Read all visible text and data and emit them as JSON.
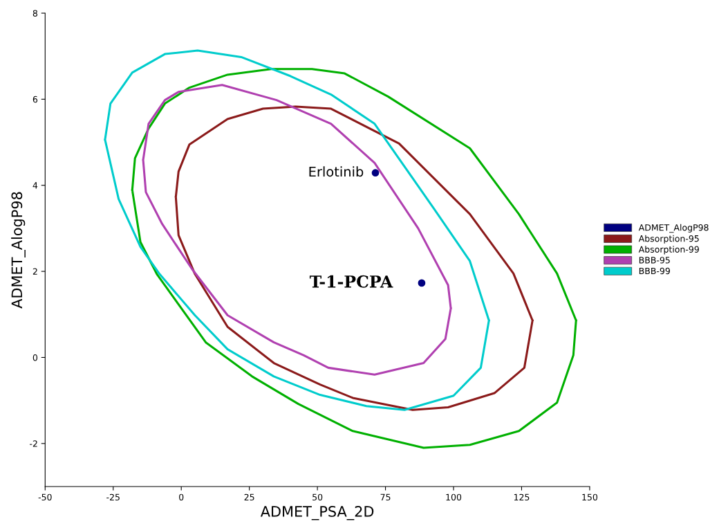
{
  "chart_data": {
    "type": "line",
    "xlabel": "ADMET_PSA_2D",
    "ylabel": "ADMET_AlogP98",
    "xlim": [
      -50,
      150
    ],
    "ylim": [
      -3,
      8
    ],
    "xticks": [
      -50,
      -25,
      0,
      25,
      50,
      75,
      100,
      125,
      150
    ],
    "yticks": [
      -2,
      0,
      2,
      4,
      6,
      8
    ],
    "grid": false,
    "legend": "right",
    "marker": "none",
    "line_style": "solid",
    "series": [
      {
        "name": "ADMET_AlogP98",
        "type": "scatter",
        "marker": "circle",
        "color": "#000080",
        "x": [
          71.3,
          88.3
        ],
        "values": [
          4.29,
          1.73
        ]
      },
      {
        "name": "Absorption-95",
        "color": "#8b1a1a",
        "x": [
          -2,
          -1,
          3,
          17,
          30,
          42,
          55,
          80,
          106,
          122,
          129,
          null,
          -2,
          -1,
          5,
          17,
          34,
          51,
          63,
          85,
          98,
          115,
          126,
          129
        ],
        "values": [
          3.73,
          4.32,
          4.95,
          5.54,
          5.78,
          5.83,
          5.78,
          4.97,
          3.33,
          1.95,
          0.86,
          null,
          3.73,
          2.84,
          1.94,
          0.71,
          -0.13,
          -0.63,
          -0.94,
          -1.22,
          -1.16,
          -0.83,
          -0.24,
          0.86
        ]
      },
      {
        "name": "Absorption-99",
        "color": "#00b000",
        "x": [
          -18,
          -17,
          -12,
          -6,
          3,
          17,
          33,
          48,
          60,
          76,
          106,
          124,
          138,
          145,
          null,
          -18,
          -15,
          -9,
          9,
          26,
          43,
          63,
          89,
          106,
          124,
          138,
          144,
          145
        ],
        "values": [
          3.89,
          4.63,
          5.32,
          5.9,
          6.27,
          6.57,
          6.7,
          6.7,
          6.6,
          6.06,
          4.86,
          3.33,
          1.95,
          0.86,
          null,
          3.89,
          2.68,
          1.94,
          0.35,
          -0.44,
          -1.08,
          -1.71,
          -2.1,
          -2.03,
          -1.71,
          -1.05,
          0.05,
          0.86
        ]
      },
      {
        "name": "BBB-95",
        "color": "#b040b0",
        "x": [
          -14,
          -12,
          -6,
          -1,
          15,
          35,
          55,
          71,
          87,
          98,
          99,
          null,
          -14,
          -13,
          -7,
          4,
          17,
          34,
          45,
          54,
          71,
          89,
          97,
          99
        ],
        "values": [
          4.59,
          5.43,
          5.98,
          6.17,
          6.33,
          5.98,
          5.43,
          4.52,
          3.0,
          1.68,
          1.14,
          null,
          4.59,
          3.84,
          3.1,
          2.05,
          0.98,
          0.35,
          0.05,
          -0.24,
          -0.4,
          -0.13,
          0.43,
          1.14
        ]
      },
      {
        "name": "BBB-99",
        "color": "#00cccc",
        "x": [
          -28,
          -26,
          -18,
          -6,
          6,
          22,
          40,
          55,
          71,
          93,
          106,
          113,
          null,
          -28,
          -23,
          -15,
          -8,
          5,
          17,
          34,
          51,
          68,
          82,
          100,
          110,
          113
        ],
        "values": [
          5.06,
          5.9,
          6.62,
          7.05,
          7.13,
          6.98,
          6.54,
          6.11,
          5.43,
          3.44,
          2.24,
          0.86,
          null,
          5.06,
          3.68,
          2.57,
          1.94,
          0.98,
          0.19,
          -0.44,
          -0.87,
          -1.13,
          -1.22,
          -0.89,
          -0.24,
          0.86
        ]
      }
    ],
    "annotations": [
      {
        "text": "Erlotinib",
        "x": 71.3,
        "y": 4.29
      },
      {
        "text": "T-1-PCPA",
        "x": 88.3,
        "y": 1.73
      }
    ]
  }
}
